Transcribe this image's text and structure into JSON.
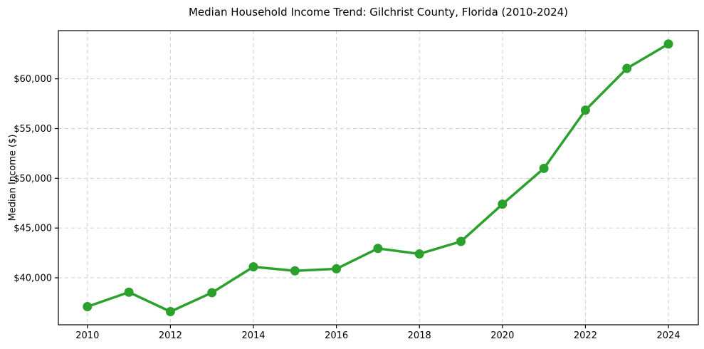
{
  "chart_data": {
    "type": "line",
    "title": "Median Household Income Trend: Gilchrist County, Florida (2010-2024)",
    "xlabel": "",
    "ylabel": "Median Income ($)",
    "x": [
      2010,
      2011,
      2012,
      2013,
      2014,
      2015,
      2016,
      2017,
      2018,
      2019,
      2020,
      2021,
      2022,
      2023,
      2024
    ],
    "values": [
      37100,
      38550,
      36600,
      38500,
      41100,
      40700,
      40900,
      42950,
      42400,
      43650,
      47400,
      51000,
      56850,
      61050,
      63500
    ],
    "series_name": "Median Household Income",
    "xlim": [
      2009.3,
      2024.72
    ],
    "ylim": [
      35275,
      64845
    ],
    "xticks": {
      "values": [
        2010,
        2012,
        2014,
        2016,
        2018,
        2020,
        2022,
        2024
      ],
      "labels": [
        "2010",
        "2012",
        "2014",
        "2016",
        "2018",
        "2020",
        "2022",
        "2024"
      ]
    },
    "yticks": {
      "values": [
        40000,
        45000,
        50000,
        55000,
        60000
      ],
      "labels": [
        "$40,000",
        "$45,000",
        "$50,000",
        "$55,000",
        "$60,000"
      ]
    },
    "grid": true,
    "grid_style": "dashed",
    "legend": "none",
    "colors": {
      "line": "#2ca02c",
      "marker": "#2ca02c",
      "grid": "#cfcfcf",
      "spine": "#000000",
      "text": "#000000",
      "background": "#ffffff"
    }
  }
}
